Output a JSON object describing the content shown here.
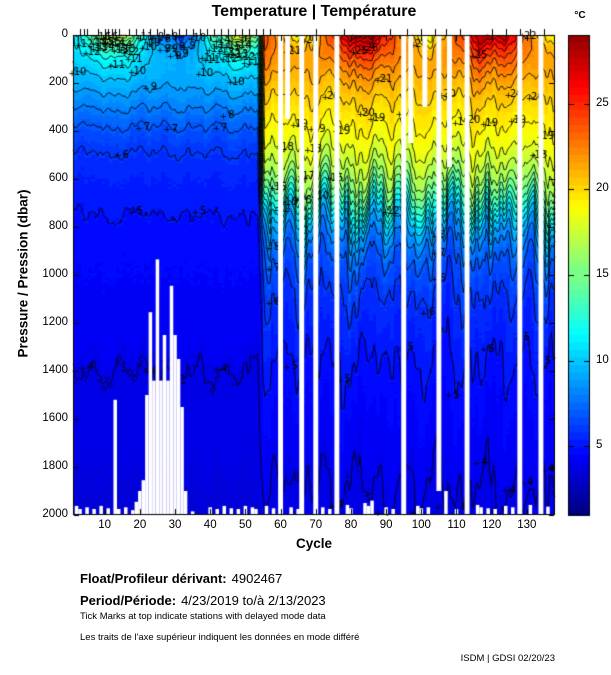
{
  "title": "Temperature | Température",
  "colorbar": {
    "unit_label": "°C",
    "ticks": [
      5,
      10,
      15,
      20,
      25
    ],
    "vmin": 1,
    "vmax": 29,
    "colormap": "jet"
  },
  "axes": {
    "ylabel": "Pressure / Pression (dbar)",
    "xlabel": "Cycle",
    "y_ticks": [
      0,
      200,
      400,
      600,
      800,
      1000,
      1200,
      1400,
      1600,
      1800,
      2000
    ],
    "x_ticks": [
      10,
      20,
      30,
      40,
      50,
      60,
      70,
      80,
      90,
      100,
      110,
      120,
      130
    ],
    "x_range": [
      1,
      138
    ],
    "y_range": [
      0,
      2000
    ]
  },
  "footer": {
    "float_label": "Float/Profileur dérivant:",
    "float_value": "4902467",
    "period_label": "Period/Période:",
    "period_value": "4/23/2019  to/à  2/13/2023",
    "note_en": "Tick Marks at top indicate stations with delayed mode data",
    "note_fr": "Les traits de l'axe supérieur indiquent les données en mode différé",
    "credit": "ISDM | GDSI  02/20/23"
  },
  "chart_data": {
    "type": "heatmap",
    "title": "Temperature | Température",
    "xlabel": "Cycle",
    "ylabel": "Pressure / Pression (dbar)",
    "x_range": [
      1,
      138
    ],
    "y_range": [
      0,
      2000
    ],
    "vmin": 1,
    "vmax": 29,
    "colormap": "jet",
    "contour_levels": {
      "min": 2,
      "max": 28,
      "step": 1
    },
    "field_model": {
      "profile_early_knots": [
        [
          0,
          11.8
        ],
        [
          50,
          11.1
        ],
        [
          100,
          10.5
        ],
        [
          150,
          10.0
        ],
        [
          200,
          9.4
        ],
        [
          250,
          8.8
        ],
        [
          300,
          8.1
        ],
        [
          350,
          7.4
        ],
        [
          400,
          6.8
        ],
        [
          450,
          6.3
        ],
        [
          500,
          5.95
        ],
        [
          550,
          5.65
        ],
        [
          600,
          5.45
        ],
        [
          650,
          5.3
        ],
        [
          700,
          5.15
        ],
        [
          750,
          5.0
        ],
        [
          800,
          4.9
        ],
        [
          900,
          4.7
        ],
        [
          1000,
          4.55
        ],
        [
          1200,
          4.3
        ],
        [
          1400,
          4.0
        ],
        [
          1700,
          3.78
        ],
        [
          2000,
          3.55
        ]
      ],
      "profile_late_knots": [
        [
          0,
          23.7
        ],
        [
          50,
          23.1
        ],
        [
          100,
          22.4
        ],
        [
          150,
          21.6
        ],
        [
          200,
          20.8
        ],
        [
          250,
          20.2
        ],
        [
          300,
          19.7
        ],
        [
          350,
          19.2
        ],
        [
          400,
          18.8
        ],
        [
          450,
          18.3
        ],
        [
          500,
          17.6
        ],
        [
          550,
          16.8
        ],
        [
          600,
          15.8
        ],
        [
          650,
          14.3
        ],
        [
          700,
          12.6
        ],
        [
          750,
          10.6
        ],
        [
          800,
          9.2
        ],
        [
          850,
          8.2
        ],
        [
          900,
          7.4
        ],
        [
          950,
          6.9
        ],
        [
          1000,
          6.5
        ],
        [
          1100,
          5.9
        ],
        [
          1200,
          5.5
        ],
        [
          1300,
          5.15
        ],
        [
          1400,
          4.9
        ],
        [
          1500,
          4.65
        ],
        [
          1600,
          4.45
        ],
        [
          1700,
          4.25
        ],
        [
          1850,
          4.05
        ],
        [
          2000,
          3.85
        ]
      ],
      "transition_start_cycle": 53.4,
      "transition_width_cycles": 2.2,
      "seasonal_early": {
        "mean_amp": 5.5,
        "peak_cycle": 12,
        "period_cycles": 36.5,
        "decay_dbar": 68
      },
      "seasonal_late": {
        "mean_amp": 4.6,
        "peak_cycle": 83,
        "period_cycles": 36.5,
        "decay_dbar": 75
      }
    },
    "contour_labels": [
      [
        13,
        9
      ],
      [
        12,
        5
      ],
      [
        14,
        11
      ],
      [
        11,
        14
      ],
      [
        10,
        20
      ],
      [
        8,
        26
      ],
      [
        9,
        28
      ],
      [
        9,
        31
      ],
      [
        10,
        34
      ],
      [
        11,
        38
      ],
      [
        12,
        42
      ],
      [
        13,
        44
      ],
      [
        10,
        48
      ],
      [
        8,
        46
      ],
      [
        14,
        4
      ],
      [
        15,
        8
      ],
      [
        13,
        15
      ],
      [
        12,
        18
      ],
      [
        11,
        22
      ],
      [
        10,
        26
      ],
      [
        9,
        33
      ],
      [
        10,
        37
      ],
      [
        11,
        40
      ],
      [
        12,
        46
      ],
      [
        13,
        49
      ],
      [
        9,
        24
      ],
      [
        8,
        30
      ],
      [
        15,
        6
      ],
      [
        14,
        16
      ],
      [
        13,
        20
      ],
      [
        12,
        24
      ],
      [
        11,
        31
      ],
      [
        12,
        36
      ],
      [
        14,
        44
      ],
      [
        15,
        47
      ],
      [
        13,
        40
      ],
      [
        16,
        10
      ],
      [
        16,
        45
      ],
      [
        10,
        3
      ],
      [
        12,
        7
      ],
      [
        14,
        9
      ],
      [
        15,
        13
      ],
      [
        14,
        14
      ],
      [
        13,
        17
      ],
      [
        11,
        19
      ],
      [
        10,
        23
      ],
      [
        9,
        25
      ],
      [
        8,
        28
      ],
      [
        8,
        32
      ],
      [
        9,
        35
      ],
      [
        10,
        39
      ],
      [
        11,
        41
      ],
      [
        12,
        45
      ],
      [
        13,
        47
      ],
      [
        14,
        50
      ],
      [
        12,
        51
      ],
      [
        11,
        52
      ],
      [
        15,
        11
      ],
      [
        16,
        12
      ],
      [
        9,
        30
      ],
      [
        10,
        31
      ],
      [
        11,
        36
      ],
      [
        6,
        16
      ],
      [
        5,
        20
      ],
      [
        5,
        38
      ],
      [
        7,
        30
      ],
      [
        7,
        22
      ],
      [
        7,
        44
      ],
      [
        4,
        6
      ],
      [
        4,
        24
      ],
      [
        4,
        29
      ],
      [
        4,
        44
      ],
      [
        25,
        58
      ],
      [
        22,
        59
      ],
      [
        15,
        60
      ],
      [
        12,
        61
      ],
      [
        18,
        62
      ],
      [
        10,
        63
      ],
      [
        21,
        64
      ],
      [
        5,
        64
      ],
      [
        6,
        59
      ],
      [
        7,
        59
      ],
      [
        8,
        59
      ],
      [
        19,
        66
      ],
      [
        16,
        67
      ],
      [
        17,
        68
      ],
      [
        20,
        69
      ],
      [
        18,
        70
      ],
      [
        10,
        72
      ],
      [
        19,
        71
      ],
      [
        16,
        76
      ],
      [
        20,
        75
      ],
      [
        19,
        78
      ],
      [
        5,
        79
      ],
      [
        4,
        77
      ],
      [
        25,
        83
      ],
      [
        20,
        85
      ],
      [
        26,
        86
      ],
      [
        19,
        88
      ],
      [
        4,
        90
      ],
      [
        21,
        90
      ],
      [
        12,
        92
      ],
      [
        19,
        96
      ],
      [
        22,
        96
      ],
      [
        5,
        97
      ],
      [
        23,
        99
      ],
      [
        20,
        100
      ],
      [
        4,
        100
      ],
      [
        6,
        103
      ],
      [
        22,
        104
      ],
      [
        8,
        106
      ],
      [
        7,
        106
      ],
      [
        6,
        106
      ],
      [
        23,
        107
      ],
      [
        4,
        107
      ],
      [
        20,
        108
      ],
      [
        5,
        110
      ],
      [
        19,
        112
      ],
      [
        4,
        112
      ],
      [
        20,
        115
      ],
      [
        25,
        117
      ],
      [
        4,
        118
      ],
      [
        19,
        120
      ],
      [
        5,
        120
      ],
      [
        20,
        127
      ],
      [
        19,
        128
      ],
      [
        4,
        126
      ],
      [
        5,
        130
      ],
      [
        22,
        131
      ],
      [
        4,
        131
      ],
      [
        20,
        133
      ],
      [
        25,
        134
      ],
      [
        19,
        136
      ],
      [
        5,
        136
      ],
      [
        4,
        137
      ],
      [
        18,
        134
      ]
    ],
    "missing_profile_stripes": [
      [
        60,
        0,
        2000
      ],
      [
        62,
        0,
        350
      ],
      [
        66,
        0,
        2000
      ],
      [
        70,
        0,
        2000
      ],
      [
        76,
        0,
        2000
      ],
      [
        95,
        0,
        2000
      ],
      [
        97,
        0,
        450
      ],
      [
        101,
        0,
        300
      ],
      [
        105,
        0,
        1900
      ],
      [
        108,
        0,
        550
      ],
      [
        113,
        0,
        2000
      ],
      [
        128,
        0,
        2000
      ],
      [
        134,
        0,
        2000
      ]
    ],
    "shallow_max_depth_bars": [
      [
        18,
        1980
      ],
      [
        19,
        1945
      ],
      [
        20,
        1900
      ],
      [
        21,
        1855
      ],
      [
        22,
        1500
      ],
      [
        23,
        1155
      ],
      [
        24,
        1440
      ],
      [
        25,
        935
      ],
      [
        26,
        1440
      ],
      [
        27,
        1250
      ],
      [
        28,
        1440
      ],
      [
        29,
        1045
      ],
      [
        30,
        1250
      ],
      [
        31,
        1350
      ],
      [
        32,
        1550
      ],
      [
        33,
        1900
      ]
    ],
    "bottom_gap_notches": [
      [
        2,
        1962
      ],
      [
        3,
        1975
      ],
      [
        5,
        1968
      ],
      [
        7,
        1975
      ],
      [
        9,
        1962
      ],
      [
        11,
        1972
      ],
      [
        13,
        1520
      ],
      [
        14,
        1975
      ],
      [
        16,
        1968
      ],
      [
        35,
        1985
      ],
      [
        40,
        1968
      ],
      [
        42,
        1975
      ],
      [
        44,
        1962
      ],
      [
        46,
        1972
      ],
      [
        48,
        1975
      ],
      [
        50,
        1962
      ],
      [
        52,
        1968
      ],
      [
        53,
        1975
      ],
      [
        56,
        1962
      ],
      [
        58,
        1972
      ],
      [
        63,
        1968
      ],
      [
        65,
        1975
      ],
      [
        72,
        1968
      ],
      [
        74,
        1975
      ],
      [
        79,
        1958
      ],
      [
        80,
        1972
      ],
      [
        84,
        1950
      ],
      [
        85,
        1962
      ],
      [
        86,
        1940
      ],
      [
        90,
        1968
      ],
      [
        92,
        1975
      ],
      [
        99,
        1962
      ],
      [
        100,
        1972
      ],
      [
        102,
        1968
      ],
      [
        107,
        1900
      ],
      [
        110,
        1975
      ],
      [
        116,
        1958
      ],
      [
        117,
        1968
      ],
      [
        119,
        1972
      ],
      [
        121,
        1975
      ],
      [
        124,
        1962
      ],
      [
        126,
        1968
      ],
      [
        131,
        1958
      ],
      [
        136,
        1965
      ]
    ],
    "delayed_mode_tick_cycles": [
      3,
      4,
      5,
      8,
      10,
      11,
      12,
      13,
      14,
      17,
      19,
      21,
      23,
      25,
      27,
      29,
      31,
      33,
      35,
      37,
      39,
      41,
      43,
      45,
      47,
      49,
      51,
      53,
      55,
      57,
      70,
      78,
      91,
      96,
      100,
      104,
      107,
      111,
      120,
      124,
      128,
      131,
      135
    ]
  }
}
